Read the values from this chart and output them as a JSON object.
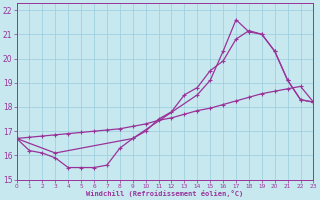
{
  "xlabel": "Windchill (Refroidissement éolien,°C)",
  "bg_color": "#c8e8f0",
  "grid_color": "#99ccdd",
  "line_color": "#993399",
  "xlim": [
    0,
    23
  ],
  "ylim": [
    15,
    22.3
  ],
  "yticks": [
    15,
    16,
    17,
    18,
    19,
    20,
    21,
    22
  ],
  "xticks": [
    0,
    1,
    2,
    3,
    4,
    5,
    6,
    7,
    8,
    9,
    10,
    11,
    12,
    13,
    14,
    15,
    16,
    17,
    18,
    19,
    20,
    21,
    22,
    23
  ],
  "line_straight_x": [
    0,
    1,
    2,
    3,
    4,
    5,
    6,
    7,
    8,
    9,
    10,
    11,
    12,
    13,
    14,
    15,
    16,
    17,
    18,
    19,
    20,
    21,
    22,
    23
  ],
  "line_straight_y": [
    16.7,
    16.75,
    16.8,
    16.85,
    16.9,
    16.95,
    17.0,
    17.05,
    17.1,
    17.2,
    17.3,
    17.45,
    17.55,
    17.7,
    17.85,
    17.95,
    18.1,
    18.25,
    18.4,
    18.55,
    18.65,
    18.75,
    18.85,
    18.2
  ],
  "line_dip_x": [
    0,
    1,
    2,
    3,
    4,
    5,
    6,
    7,
    8,
    9,
    10,
    11,
    12,
    13,
    14,
    15,
    16,
    17,
    18,
    19,
    20,
    21,
    22,
    23
  ],
  "line_dip_y": [
    16.7,
    16.2,
    16.1,
    15.9,
    15.5,
    15.5,
    15.5,
    15.6,
    16.3,
    16.7,
    17.0,
    17.5,
    17.8,
    18.5,
    18.8,
    19.5,
    19.9,
    20.8,
    21.15,
    21.0,
    20.3,
    19.1,
    18.3,
    18.2
  ],
  "line_peak_x": [
    0,
    3,
    9,
    14,
    15,
    16,
    17,
    18,
    19,
    20,
    21,
    22,
    23
  ],
  "line_peak_y": [
    16.7,
    16.1,
    16.7,
    18.5,
    19.1,
    20.3,
    21.6,
    21.1,
    21.0,
    20.3,
    19.1,
    18.3,
    18.2
  ]
}
